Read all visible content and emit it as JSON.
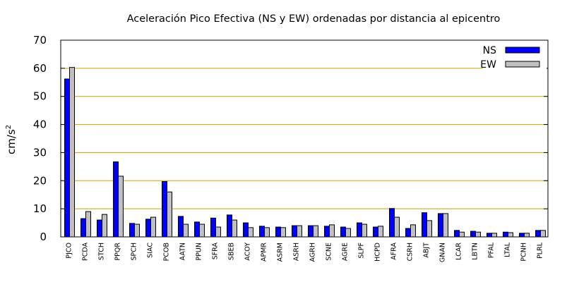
{
  "chart_data": {
    "type": "bar",
    "title": "Aceleración Pico Efectiva (NS y EW) ordenadas por distancia al epicentro",
    "xlabel": "",
    "ylabel": "cm/s",
    "ylabel_superscript": "2",
    "ylim": [
      0,
      70
    ],
    "yticks": [
      "0",
      "10",
      "20",
      "30",
      "40",
      "50",
      "60",
      "70"
    ],
    "grid": true,
    "legend_position": "top-right",
    "colors": {
      "NS": "#0000ff",
      "EW": "#c0c0c0",
      "grid": "#c8a000"
    },
    "categories": [
      "PJCO",
      "PCDA",
      "STCH",
      "PPQR",
      "SPCH",
      "SIAC",
      "PCOB",
      "AATN",
      "PPUN",
      "SFRA",
      "SBEB",
      "ACOY",
      "APMR",
      "ASRM",
      "ASRH",
      "AGRH",
      "SCNE",
      "AGRE",
      "SLPF",
      "HCPD",
      "AFRA",
      "CSRH",
      "ABJT",
      "GNAN",
      "LCAR",
      "LBTN",
      "PFAL",
      "LTAL",
      "PCNH",
      "PLRL"
    ],
    "series": [
      {
        "name": "NS",
        "values": [
          56.2,
          6.5,
          6.0,
          26.7,
          4.8,
          6.3,
          19.7,
          7.3,
          5.3,
          6.7,
          7.8,
          5.0,
          3.8,
          3.5,
          4.0,
          4.0,
          3.8,
          3.5,
          5.0,
          3.5,
          10.1,
          3.0,
          8.6,
          8.3,
          2.3,
          2.0,
          1.3,
          1.7,
          1.3,
          2.3
        ]
      },
      {
        "name": "EW",
        "values": [
          60.3,
          9.0,
          8.0,
          21.6,
          4.5,
          7.0,
          16.0,
          4.5,
          4.5,
          3.5,
          6.0,
          3.3,
          3.3,
          3.3,
          4.0,
          4.0,
          4.3,
          3.0,
          4.5,
          3.8,
          7.0,
          4.3,
          5.8,
          8.3,
          1.7,
          1.7,
          1.3,
          1.5,
          1.3,
          2.3
        ]
      }
    ]
  }
}
